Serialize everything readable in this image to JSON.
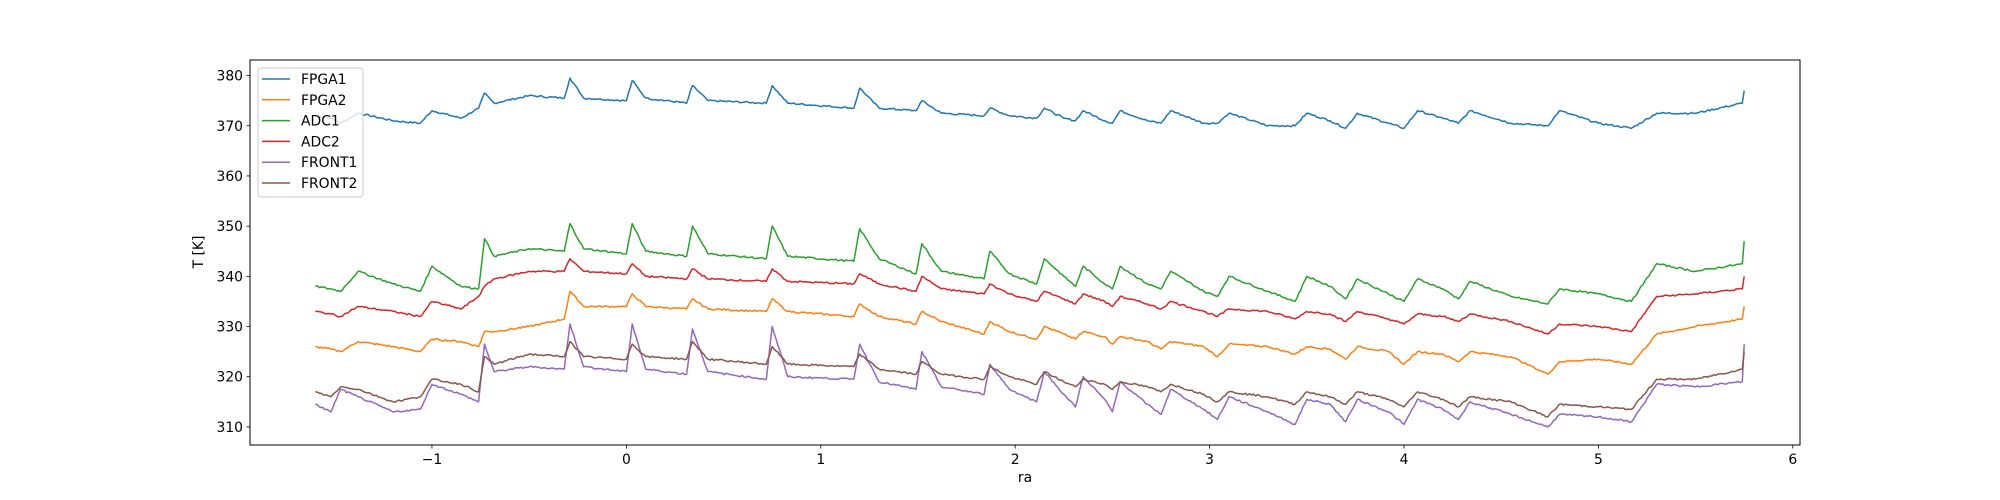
{
  "chart_data": {
    "type": "line",
    "title": "",
    "xlabel": "ra",
    "ylabel": "T [K]",
    "xlim": [
      -1.936,
      6.037
    ],
    "ylim": [
      306.4,
      383.1
    ],
    "xticks": [
      -1,
      0,
      1,
      2,
      3,
      4,
      5,
      6
    ],
    "xtick_labels": [
      "−1",
      "0",
      "1",
      "2",
      "3",
      "4",
      "5",
      "6"
    ],
    "yticks": [
      310,
      320,
      330,
      340,
      350,
      360,
      370,
      380
    ],
    "ytick_labels": [
      "310",
      "320",
      "330",
      "340",
      "350",
      "360",
      "370",
      "380"
    ],
    "grid": false,
    "legend_position": "top-left",
    "x": [
      -1.6,
      -1.52,
      -1.47,
      -1.38,
      -1.2,
      -1.06,
      -1.0,
      -0.85,
      -0.76,
      -0.73,
      -0.68,
      -0.5,
      -0.32,
      -0.29,
      -0.22,
      0.0,
      0.03,
      0.1,
      0.31,
      0.34,
      0.42,
      0.72,
      0.75,
      0.83,
      1.17,
      1.2,
      1.3,
      1.49,
      1.52,
      1.62,
      1.84,
      1.87,
      1.97,
      2.11,
      2.15,
      2.25,
      2.31,
      2.35,
      2.46,
      2.5,
      2.54,
      2.68,
      2.75,
      2.8,
      2.97,
      3.04,
      3.1,
      3.3,
      3.44,
      3.5,
      3.62,
      3.7,
      3.76,
      3.92,
      4.0,
      4.07,
      4.2,
      4.28,
      4.34,
      4.55,
      4.74,
      4.8,
      5.0,
      5.17,
      5.3,
      5.5,
      5.74,
      5.75
    ],
    "series": [
      {
        "name": "FPGA1",
        "color": "#1f77b4",
        "values": [
          372,
          371.5,
          370.5,
          372.5,
          371,
          370.5,
          373,
          371.5,
          373.5,
          376.5,
          374.5,
          376,
          375.5,
          379.5,
          375.5,
          375,
          379,
          375.5,
          374.5,
          378,
          375,
          374.5,
          378,
          374.5,
          373.5,
          377.5,
          373.5,
          373,
          375,
          372.5,
          372,
          373.5,
          372,
          371.5,
          373.5,
          371.5,
          371,
          373,
          371,
          370.5,
          373,
          371,
          370.5,
          373,
          370.5,
          370.5,
          372.5,
          370,
          370,
          372.5,
          371,
          369.5,
          372.5,
          370.5,
          369.5,
          373,
          371.5,
          370.5,
          373,
          370.5,
          370,
          373,
          370.5,
          369.5,
          372.5,
          372.5,
          374.5,
          377
        ]
      },
      {
        "name": "FPGA2",
        "color": "#ff7f0e",
        "values": [
          326,
          325.5,
          325,
          327,
          326,
          325,
          327.5,
          327,
          326,
          329,
          329,
          330,
          331.5,
          337,
          334,
          334,
          336.5,
          334,
          333.5,
          335.5,
          333.5,
          333,
          335.5,
          333,
          332,
          334.5,
          332,
          330.5,
          333,
          331,
          328.5,
          331,
          329,
          327.5,
          330,
          328.5,
          327.5,
          329,
          328,
          326.5,
          328,
          327,
          325.5,
          327,
          326,
          324,
          326.5,
          326,
          324.5,
          326,
          325.5,
          323.5,
          326,
          325,
          322.5,
          325,
          324.5,
          323,
          325,
          324,
          320.5,
          323,
          323.5,
          322.5,
          328.5,
          330,
          331.5,
          334
        ]
      },
      {
        "name": "ADC1",
        "color": "#2ca02c",
        "values": [
          338,
          337.5,
          337,
          341,
          338.5,
          337,
          342,
          338,
          337.5,
          347.5,
          344,
          345.5,
          345,
          350.5,
          345.5,
          344.5,
          350.5,
          345,
          344,
          350,
          344.5,
          343.5,
          350,
          344,
          343,
          349.5,
          343.5,
          340.5,
          346.5,
          341,
          339.5,
          345,
          340.5,
          338.5,
          343.5,
          340,
          338,
          342,
          338.5,
          337.5,
          342,
          338.5,
          337.5,
          341,
          337,
          336,
          340,
          337,
          335,
          340,
          338,
          335.5,
          339.5,
          336.5,
          335,
          339.5,
          337.5,
          335.5,
          339,
          336,
          334.5,
          337.5,
          336.5,
          335,
          342.5,
          341,
          342.5,
          347
        ]
      },
      {
        "name": "ADC2",
        "color": "#d62728",
        "values": [
          333,
          332.5,
          332,
          334,
          333,
          332,
          335,
          333.5,
          336,
          338,
          339.5,
          341,
          341,
          343.5,
          341,
          340.5,
          342.5,
          340,
          339.5,
          341.5,
          339.5,
          339,
          341.5,
          339,
          338.5,
          340.5,
          338.5,
          337,
          340,
          337.5,
          336.5,
          338.5,
          336.5,
          335,
          337,
          335.5,
          334.5,
          336.5,
          335,
          334,
          336,
          334.5,
          333.5,
          335,
          333,
          332,
          333.5,
          333,
          331.5,
          333,
          332.5,
          331,
          333,
          331.5,
          330.5,
          332.5,
          332,
          331,
          332.5,
          331,
          328.5,
          330.5,
          330,
          329,
          336,
          336.5,
          337.5,
          340
        ]
      },
      {
        "name": "FRONT1",
        "color": "#9467bd",
        "values": [
          314.5,
          313,
          317.5,
          316,
          313,
          313.5,
          318.5,
          316.5,
          315,
          326.5,
          321,
          322,
          321.5,
          330.5,
          322,
          321,
          330.5,
          321.5,
          320.5,
          329.5,
          321,
          319.5,
          330,
          320,
          319.5,
          326.5,
          319,
          317.5,
          325,
          318,
          316.5,
          322.5,
          317.5,
          315,
          321,
          316.5,
          314,
          320,
          315.5,
          313,
          319,
          314.5,
          312.5,
          317.5,
          313.5,
          311.5,
          316,
          313,
          310.5,
          315.5,
          314.5,
          311,
          315.5,
          313,
          310.5,
          315.5,
          313.5,
          311.5,
          315,
          312.5,
          310,
          312.5,
          312,
          311,
          318.5,
          318,
          319,
          326.5
        ]
      },
      {
        "name": "FRONT2",
        "color": "#8c564b",
        "values": [
          317,
          316,
          318,
          317.5,
          315,
          316,
          319.5,
          318.5,
          317,
          324,
          322.5,
          324.5,
          324,
          327,
          324,
          323.5,
          326.5,
          324,
          323.5,
          327,
          323.5,
          322.5,
          326,
          322.5,
          322,
          324.5,
          321.5,
          320.5,
          323,
          320.5,
          319.5,
          322,
          320,
          318.5,
          321,
          319,
          318,
          319.5,
          318.5,
          317.5,
          319,
          318,
          317,
          318.5,
          316.5,
          315,
          317,
          316,
          314.5,
          317,
          316,
          314.5,
          317,
          315.5,
          314,
          317,
          315.5,
          314,
          316,
          315,
          312,
          314.5,
          314,
          313.5,
          319.5,
          319.5,
          321.5,
          325
        ]
      }
    ]
  }
}
